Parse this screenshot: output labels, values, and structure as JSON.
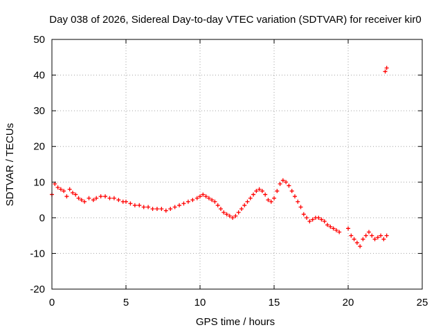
{
  "chart_data": {
    "type": "scatter",
    "title": "Day 038 of 2026, Sidereal Day-to-day VTEC variation (SDTVAR) for receiver kir0",
    "xlabel": "GPS time / hours",
    "ylabel": "SDTVAR / TECUs",
    "xlim": [
      0,
      25
    ],
    "ylim": [
      -20,
      50
    ],
    "xticks": [
      "0",
      "5",
      "10",
      "15",
      "20",
      "25"
    ],
    "yticks": [
      "-20",
      "-10",
      "0",
      "10",
      "20",
      "30",
      "40",
      "50"
    ],
    "grid": true,
    "marker": "+",
    "color": "#ff0000",
    "series": [
      {
        "name": "SDTVAR kir0",
        "x": [
          0.0,
          0.2,
          0.4,
          0.6,
          0.8,
          1.0,
          1.2,
          1.4,
          1.6,
          1.8,
          2.0,
          2.2,
          2.5,
          2.8,
          3.0,
          3.3,
          3.6,
          3.9,
          4.2,
          4.5,
          4.8,
          5.0,
          5.3,
          5.6,
          5.9,
          6.2,
          6.5,
          6.8,
          7.1,
          7.4,
          7.7,
          8.0,
          8.3,
          8.6,
          8.9,
          9.2,
          9.5,
          9.8,
          10.0,
          10.2,
          10.4,
          10.6,
          10.8,
          11.0,
          11.2,
          11.4,
          11.6,
          11.8,
          12.0,
          12.2,
          12.4,
          12.6,
          12.8,
          13.0,
          13.2,
          13.4,
          13.6,
          13.8,
          14.0,
          14.2,
          14.4,
          14.6,
          14.8,
          15.0,
          15.2,
          15.4,
          15.6,
          15.8,
          16.0,
          16.2,
          16.4,
          16.6,
          16.8,
          17.0,
          17.2,
          17.4,
          17.6,
          17.8,
          18.0,
          18.2,
          18.4,
          18.6,
          18.8,
          19.0,
          19.2,
          19.4,
          20.0,
          20.2,
          20.4,
          20.6,
          20.8,
          21.0,
          21.2,
          21.4,
          21.6,
          21.8,
          22.0,
          22.2,
          22.4,
          22.6,
          22.5,
          22.6
        ],
        "y": [
          6.5,
          9.5,
          8.5,
          8.0,
          7.5,
          6.0,
          8.0,
          7.0,
          6.5,
          5.5,
          5.0,
          4.5,
          5.5,
          5.0,
          5.5,
          6.0,
          6.0,
          5.5,
          5.5,
          5.0,
          4.5,
          4.5,
          4.0,
          3.5,
          3.5,
          3.0,
          3.0,
          2.5,
          2.5,
          2.5,
          2.0,
          2.5,
          3.0,
          3.5,
          4.0,
          4.5,
          5.0,
          5.5,
          6.0,
          6.5,
          6.0,
          5.5,
          5.0,
          4.5,
          3.5,
          2.5,
          1.5,
          1.0,
          0.5,
          0.0,
          0.5,
          1.5,
          2.5,
          3.5,
          4.5,
          5.5,
          6.5,
          7.5,
          8.0,
          7.5,
          6.5,
          5.0,
          4.5,
          5.5,
          7.5,
          9.5,
          10.5,
          10.0,
          9.0,
          7.5,
          6.0,
          4.5,
          3.0,
          1.0,
          0.0,
          -1.0,
          -0.5,
          0.0,
          0.0,
          -0.5,
          -1.0,
          -2.0,
          -2.5,
          -3.0,
          -3.5,
          -4.0,
          -3.0,
          -5.0,
          -6.0,
          -7.0,
          -8.0,
          -6.0,
          -5.0,
          -4.0,
          -5.0,
          -6.0,
          -5.5,
          -5.0,
          -6.0,
          -5.0,
          41.0,
          42.0
        ]
      }
    ]
  }
}
